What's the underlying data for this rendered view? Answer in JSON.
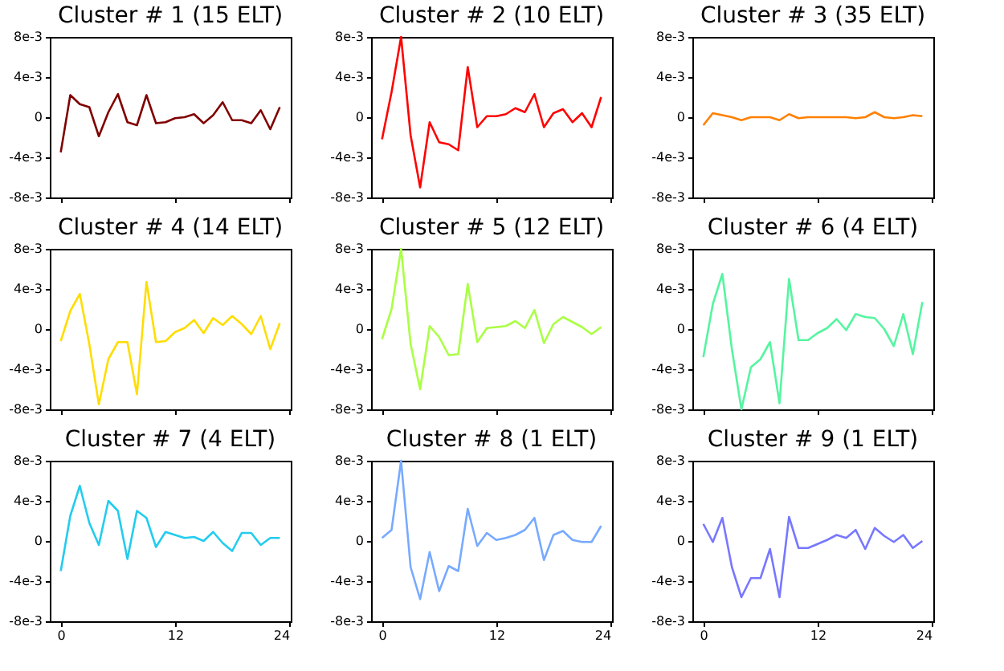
{
  "chart_data": [
    {
      "type": "line",
      "title": "Cluster # 1 (15 ELT)",
      "x": [
        0,
        1,
        2,
        3,
        4,
        5,
        6,
        7,
        8,
        9,
        10,
        11,
        12,
        13,
        14,
        15,
        16,
        17,
        18,
        19,
        20,
        21,
        22,
        23
      ],
      "series": [
        {
          "color": "#800000",
          "values": [
            -0.0035,
            0.0022,
            0.0013,
            0.001,
            -0.0019,
            0.0005,
            0.0023,
            -0.0005,
            -0.0008,
            0.0022,
            -0.0006,
            -0.0005,
            -0.0001,
            0.0,
            0.0003,
            -0.0006,
            0.0002,
            0.0015,
            -0.0003,
            -0.0003,
            -0.0006,
            0.0007,
            -0.0012,
            0.001
          ]
        }
      ],
      "xlim": [
        -1.15,
        24.15
      ],
      "xticks": [
        {
          "value": 0,
          "label": null
        },
        {
          "value": 12,
          "label": null
        },
        {
          "value": 24,
          "label": null
        }
      ],
      "ylim": [
        -0.008,
        0.008
      ],
      "yticks": [
        {
          "value": -0.008,
          "label": "-8e-3"
        },
        {
          "value": -0.004,
          "label": "-4e-3"
        },
        0,
        {
          "value": 0.004,
          "label": "4e-3"
        },
        {
          "value": 0.008,
          "label": "8e-3"
        }
      ],
      "tick_labels": "y",
      "marker": "none",
      "line_style": "solid"
    },
    {
      "type": "line",
      "title": "Cluster # 2 (10 ELT)",
      "x": [
        0,
        1,
        2,
        3,
        4,
        5,
        6,
        7,
        8,
        9,
        10,
        11,
        12,
        13,
        14,
        15,
        16,
        17,
        18,
        19,
        20,
        21,
        22,
        23
      ],
      "series": [
        {
          "color": "#ff0000",
          "values": [
            -0.0022,
            0.0025,
            0.008,
            -0.0018,
            -0.007,
            -0.0005,
            -0.0025,
            -0.0027,
            -0.0033,
            0.005,
            -0.001,
            0.0001,
            0.0001,
            0.0003,
            0.0009,
            0.0005,
            0.0023,
            -0.001,
            0.0004,
            0.0008,
            -0.0005,
            0.0004,
            -0.001,
            0.002
          ]
        }
      ],
      "xlim": [
        -1.15,
        24.15
      ],
      "xticks": [
        {
          "value": 0,
          "label": null
        },
        {
          "value": 12,
          "label": null
        },
        {
          "value": 24,
          "label": null
        }
      ],
      "ylim": [
        -0.008,
        0.008
      ],
      "yticks": [
        {
          "value": -0.008,
          "label": "-8e-3"
        },
        {
          "value": -0.004,
          "label": "-4e-3"
        },
        0,
        {
          "value": 0.004,
          "label": "4e-3"
        },
        {
          "value": 0.008,
          "label": "8e-3"
        }
      ],
      "tick_labels": "y",
      "marker": "none",
      "line_style": "solid"
    },
    {
      "type": "line",
      "title": "Cluster # 3 (35 ELT)",
      "x": [
        0,
        1,
        2,
        3,
        4,
        5,
        6,
        7,
        8,
        9,
        10,
        11,
        12,
        13,
        14,
        15,
        16,
        17,
        18,
        19,
        20,
        21,
        22,
        23
      ],
      "series": [
        {
          "color": "#ff8000",
          "values": [
            -0.0008,
            0.0004,
            0.0002,
            0.0,
            -0.0003,
            0.0,
            0.0,
            0.0,
            -0.0003,
            0.0003,
            -0.0001,
            0.0,
            0.0,
            0.0,
            0.0,
            0.0,
            -0.0001,
            0.0,
            0.0005,
            0.0,
            -0.0001,
            0.0,
            0.0002,
            0.0001
          ]
        }
      ],
      "xlim": [
        -1.15,
        24.15
      ],
      "xticks": [
        {
          "value": 0,
          "label": null
        },
        {
          "value": 12,
          "label": null
        },
        {
          "value": 24,
          "label": null
        }
      ],
      "ylim": [
        -0.008,
        0.008
      ],
      "yticks": [
        {
          "value": -0.008,
          "label": "-8e-3"
        },
        {
          "value": -0.004,
          "label": "-4e-3"
        },
        0,
        {
          "value": 0.004,
          "label": "4e-3"
        },
        {
          "value": 0.008,
          "label": "8e-3"
        }
      ],
      "tick_labels": "y",
      "marker": "none",
      "line_style": "solid"
    },
    {
      "type": "line",
      "title": "Cluster # 4 (14 ELT)",
      "x": [
        0,
        1,
        2,
        3,
        4,
        5,
        6,
        7,
        8,
        9,
        10,
        11,
        12,
        13,
        14,
        15,
        16,
        17,
        18,
        19,
        20,
        21,
        22,
        23
      ],
      "series": [
        {
          "color": "#ffdd00",
          "values": [
            -0.0012,
            0.0018,
            0.0035,
            -0.0015,
            -0.0075,
            -0.003,
            -0.0013,
            -0.0013,
            -0.0065,
            0.0047,
            -0.0013,
            -0.0012,
            -0.0003,
            0.0001,
            0.0009,
            -0.0004,
            0.0011,
            0.0004,
            0.0013,
            0.0005,
            -0.0005,
            0.0013,
            -0.002,
            0.0006
          ]
        }
      ],
      "xlim": [
        -1.15,
        24.15
      ],
      "xticks": [
        {
          "value": 0,
          "label": null
        },
        {
          "value": 12,
          "label": null
        },
        {
          "value": 24,
          "label": null
        }
      ],
      "ylim": [
        -0.008,
        0.008
      ],
      "yticks": [
        {
          "value": -0.008,
          "label": "-8e-3"
        },
        {
          "value": -0.004,
          "label": "-4e-3"
        },
        0,
        {
          "value": 0.004,
          "label": "4e-3"
        },
        {
          "value": 0.008,
          "label": "8e-3"
        }
      ],
      "tick_labels": "y",
      "marker": "none",
      "line_style": "solid"
    },
    {
      "type": "line",
      "title": "Cluster # 5 (12 ELT)",
      "x": [
        0,
        1,
        2,
        3,
        4,
        5,
        6,
        7,
        8,
        9,
        10,
        11,
        12,
        13,
        14,
        15,
        16,
        17,
        18,
        19,
        20,
        21,
        22,
        23
      ],
      "series": [
        {
          "color": "#aaff44",
          "values": [
            -0.001,
            0.002,
            0.008,
            -0.0015,
            -0.006,
            0.0003,
            -0.0008,
            -0.0026,
            -0.0025,
            0.0045,
            -0.0013,
            0.0001,
            0.0002,
            0.0003,
            0.0008,
            0.0001,
            0.0019,
            -0.0014,
            0.0005,
            0.0012,
            0.0007,
            0.0002,
            -0.0005,
            0.0002
          ]
        }
      ],
      "xlim": [
        -1.15,
        24.15
      ],
      "xticks": [
        {
          "value": 0,
          "label": null
        },
        {
          "value": 12,
          "label": null
        },
        {
          "value": 24,
          "label": null
        }
      ],
      "ylim": [
        -0.008,
        0.008
      ],
      "yticks": [
        {
          "value": -0.008,
          "label": "-8e-3"
        },
        {
          "value": -0.004,
          "label": "-4e-3"
        },
        0,
        {
          "value": 0.004,
          "label": "4e-3"
        },
        {
          "value": 0.008,
          "label": "8e-3"
        }
      ],
      "tick_labels": "y",
      "marker": "none",
      "line_style": "solid"
    },
    {
      "type": "line",
      "title": "Cluster # 6 (4 ELT)",
      "x": [
        0,
        1,
        2,
        3,
        4,
        5,
        6,
        7,
        8,
        9,
        10,
        11,
        12,
        13,
        14,
        15,
        16,
        17,
        18,
        19,
        20,
        21,
        22,
        23
      ],
      "series": [
        {
          "color": "#55f5a0",
          "values": [
            -0.0028,
            0.0025,
            0.0055,
            -0.002,
            -0.008,
            -0.0038,
            -0.003,
            -0.0013,
            -0.0074,
            0.005,
            -0.0011,
            -0.0011,
            -0.0004,
            0.0001,
            0.001,
            -0.0001,
            0.0015,
            0.0012,
            0.0011,
            0.0,
            -0.0017,
            0.0015,
            -0.0025,
            0.0027
          ]
        }
      ],
      "xlim": [
        -1.15,
        24.15
      ],
      "xticks": [
        {
          "value": 0,
          "label": null
        },
        {
          "value": 12,
          "label": null
        },
        {
          "value": 24,
          "label": null
        }
      ],
      "ylim": [
        -0.008,
        0.008
      ],
      "yticks": [
        {
          "value": -0.008,
          "label": "-8e-3"
        },
        {
          "value": -0.004,
          "label": "-4e-3"
        },
        0,
        {
          "value": 0.004,
          "label": "4e-3"
        },
        {
          "value": 0.008,
          "label": "8e-3"
        }
      ],
      "tick_labels": "y",
      "marker": "none",
      "line_style": "solid"
    },
    {
      "type": "line",
      "title": "Cluster # 7 (4 ELT)",
      "x": [
        0,
        1,
        2,
        3,
        4,
        5,
        6,
        7,
        8,
        9,
        10,
        11,
        12,
        13,
        14,
        15,
        16,
        17,
        18,
        19,
        20,
        21,
        22,
        23
      ],
      "series": [
        {
          "color": "#22ccee",
          "values": [
            -0.003,
            0.0025,
            0.0055,
            0.0018,
            -0.0004,
            0.004,
            0.003,
            -0.0018,
            0.003,
            0.0023,
            -0.0006,
            0.0009,
            0.0006,
            0.0003,
            0.0004,
            0.0,
            0.0009,
            -0.0002,
            -0.001,
            0.0008,
            0.0008,
            -0.0004,
            0.0003,
            0.0003
          ]
        }
      ],
      "xlim": [
        -1.15,
        24.15
      ],
      "xticks": [
        0,
        12,
        24
      ],
      "ylim": [
        -0.008,
        0.008
      ],
      "yticks": [
        {
          "value": -0.008,
          "label": "-8e-3"
        },
        {
          "value": -0.004,
          "label": "-4e-3"
        },
        0,
        {
          "value": 0.004,
          "label": "4e-3"
        },
        {
          "value": 0.008,
          "label": "8e-3"
        }
      ],
      "marker": "none",
      "line_style": "solid"
    },
    {
      "type": "line",
      "title": "Cluster # 8 (1 ELT)",
      "x": [
        0,
        1,
        2,
        3,
        4,
        5,
        6,
        7,
        8,
        9,
        10,
        11,
        12,
        13,
        14,
        15,
        16,
        17,
        18,
        19,
        20,
        21,
        22,
        23
      ],
      "series": [
        {
          "color": "#77aaff",
          "values": [
            0.0003,
            0.0011,
            0.008,
            -0.0026,
            -0.0058,
            -0.0011,
            -0.005,
            -0.0025,
            -0.003,
            0.0032,
            -0.0005,
            0.0008,
            0.0001,
            0.0003,
            0.0006,
            0.0011,
            0.0023,
            -0.0019,
            0.0006,
            0.001,
            0.0001,
            -0.0001,
            -0.0001,
            0.0015
          ]
        }
      ],
      "xlim": [
        -1.15,
        24.15
      ],
      "xticks": [
        0,
        12,
        24
      ],
      "ylim": [
        -0.008,
        0.008
      ],
      "yticks": [
        {
          "value": -0.008,
          "label": "-8e-3"
        },
        {
          "value": -0.004,
          "label": "-4e-3"
        },
        0,
        {
          "value": 0.004,
          "label": "4e-3"
        },
        {
          "value": 0.008,
          "label": "8e-3"
        }
      ],
      "marker": "none",
      "line_style": "solid"
    },
    {
      "type": "line",
      "title": "Cluster # 9 (1 ELT)",
      "x": [
        0,
        1,
        2,
        3,
        4,
        5,
        6,
        7,
        8,
        9,
        10,
        11,
        12,
        13,
        14,
        15,
        16,
        17,
        18,
        19,
        20,
        21,
        22,
        23
      ],
      "series": [
        {
          "color": "#7777ff",
          "values": [
            0.0017,
            -0.0001,
            0.0023,
            -0.0026,
            -0.0056,
            -0.0037,
            -0.0037,
            -0.0008,
            -0.0056,
            0.0024,
            -0.0007,
            -0.0007,
            -0.0003,
            0.0001,
            0.0006,
            0.0003,
            0.0011,
            -0.0008,
            0.0013,
            0.0005,
            -0.0001,
            0.0006,
            -0.0007,
            0.0
          ]
        }
      ],
      "xlim": [
        -1.15,
        24.15
      ],
      "xticks": [
        0,
        12,
        24
      ],
      "ylim": [
        -0.008,
        0.008
      ],
      "yticks": [
        {
          "value": -0.008,
          "label": "-8e-3"
        },
        {
          "value": -0.004,
          "label": "-4e-3"
        },
        0,
        {
          "value": 0.004,
          "label": "4e-3"
        },
        {
          "value": 0.008,
          "label": "8e-3"
        }
      ],
      "marker": "none",
      "line_style": "solid"
    }
  ]
}
